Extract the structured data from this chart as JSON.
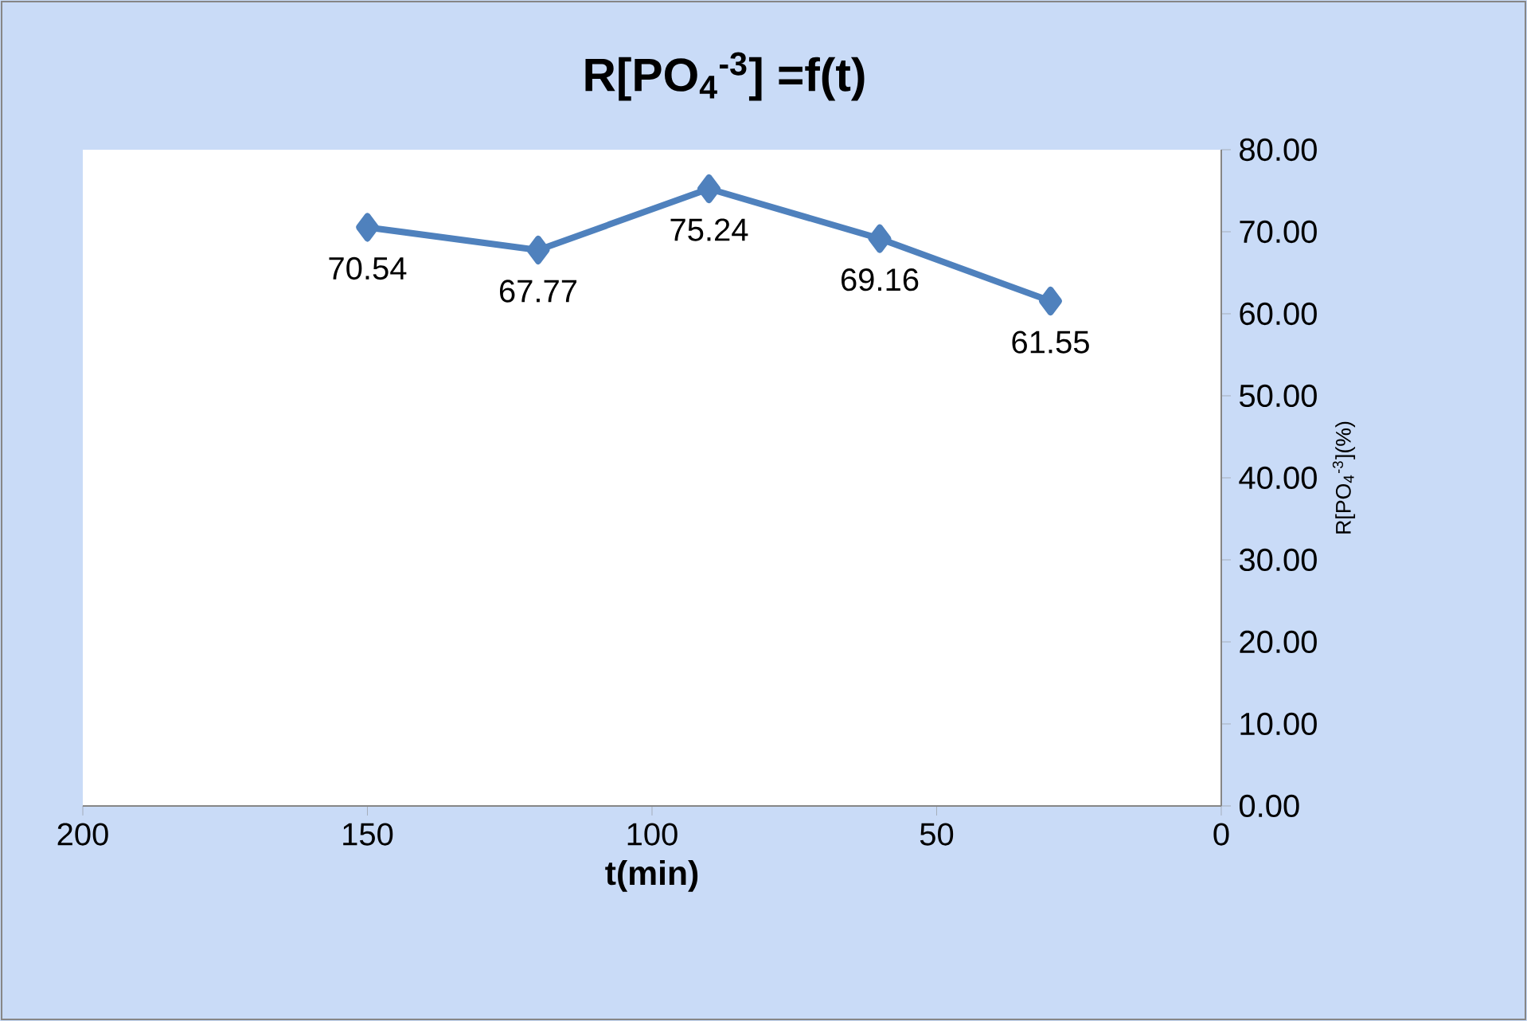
{
  "chart_data": {
    "type": "line",
    "title": "R[PO$_{4}$$^{-3}$] =f(t)",
    "xlabel": "t(min)",
    "ylabel": "R[PO$_{4}$$^{-3}$](%)",
    "x": [
      150,
      120,
      90,
      60,
      30
    ],
    "series": [
      {
        "color": "#4f81bd",
        "values": [
          70.54,
          67.77,
          75.24,
          69.16,
          61.55
        ]
      }
    ],
    "xlim": [
      200,
      0
    ],
    "xticks": [
      200,
      150,
      100,
      50,
      0
    ],
    "ylim": [
      0,
      80
    ],
    "yticks": [
      {
        "value": 0,
        "label": "0.00"
      },
      {
        "value": 10,
        "label": "10.00"
      },
      {
        "value": 20,
        "label": "20.00"
      },
      {
        "value": 30,
        "label": "30.00"
      },
      {
        "value": 40,
        "label": "40.00"
      },
      {
        "value": 50,
        "label": "50.00"
      },
      {
        "value": 60,
        "label": "60.00"
      },
      {
        "value": 70,
        "label": "70.00"
      },
      {
        "value": 80,
        "label": "80.00"
      }
    ],
    "data_labels": true,
    "grid": false,
    "legend": false,
    "marker": "diamond",
    "line_style": "solid"
  }
}
